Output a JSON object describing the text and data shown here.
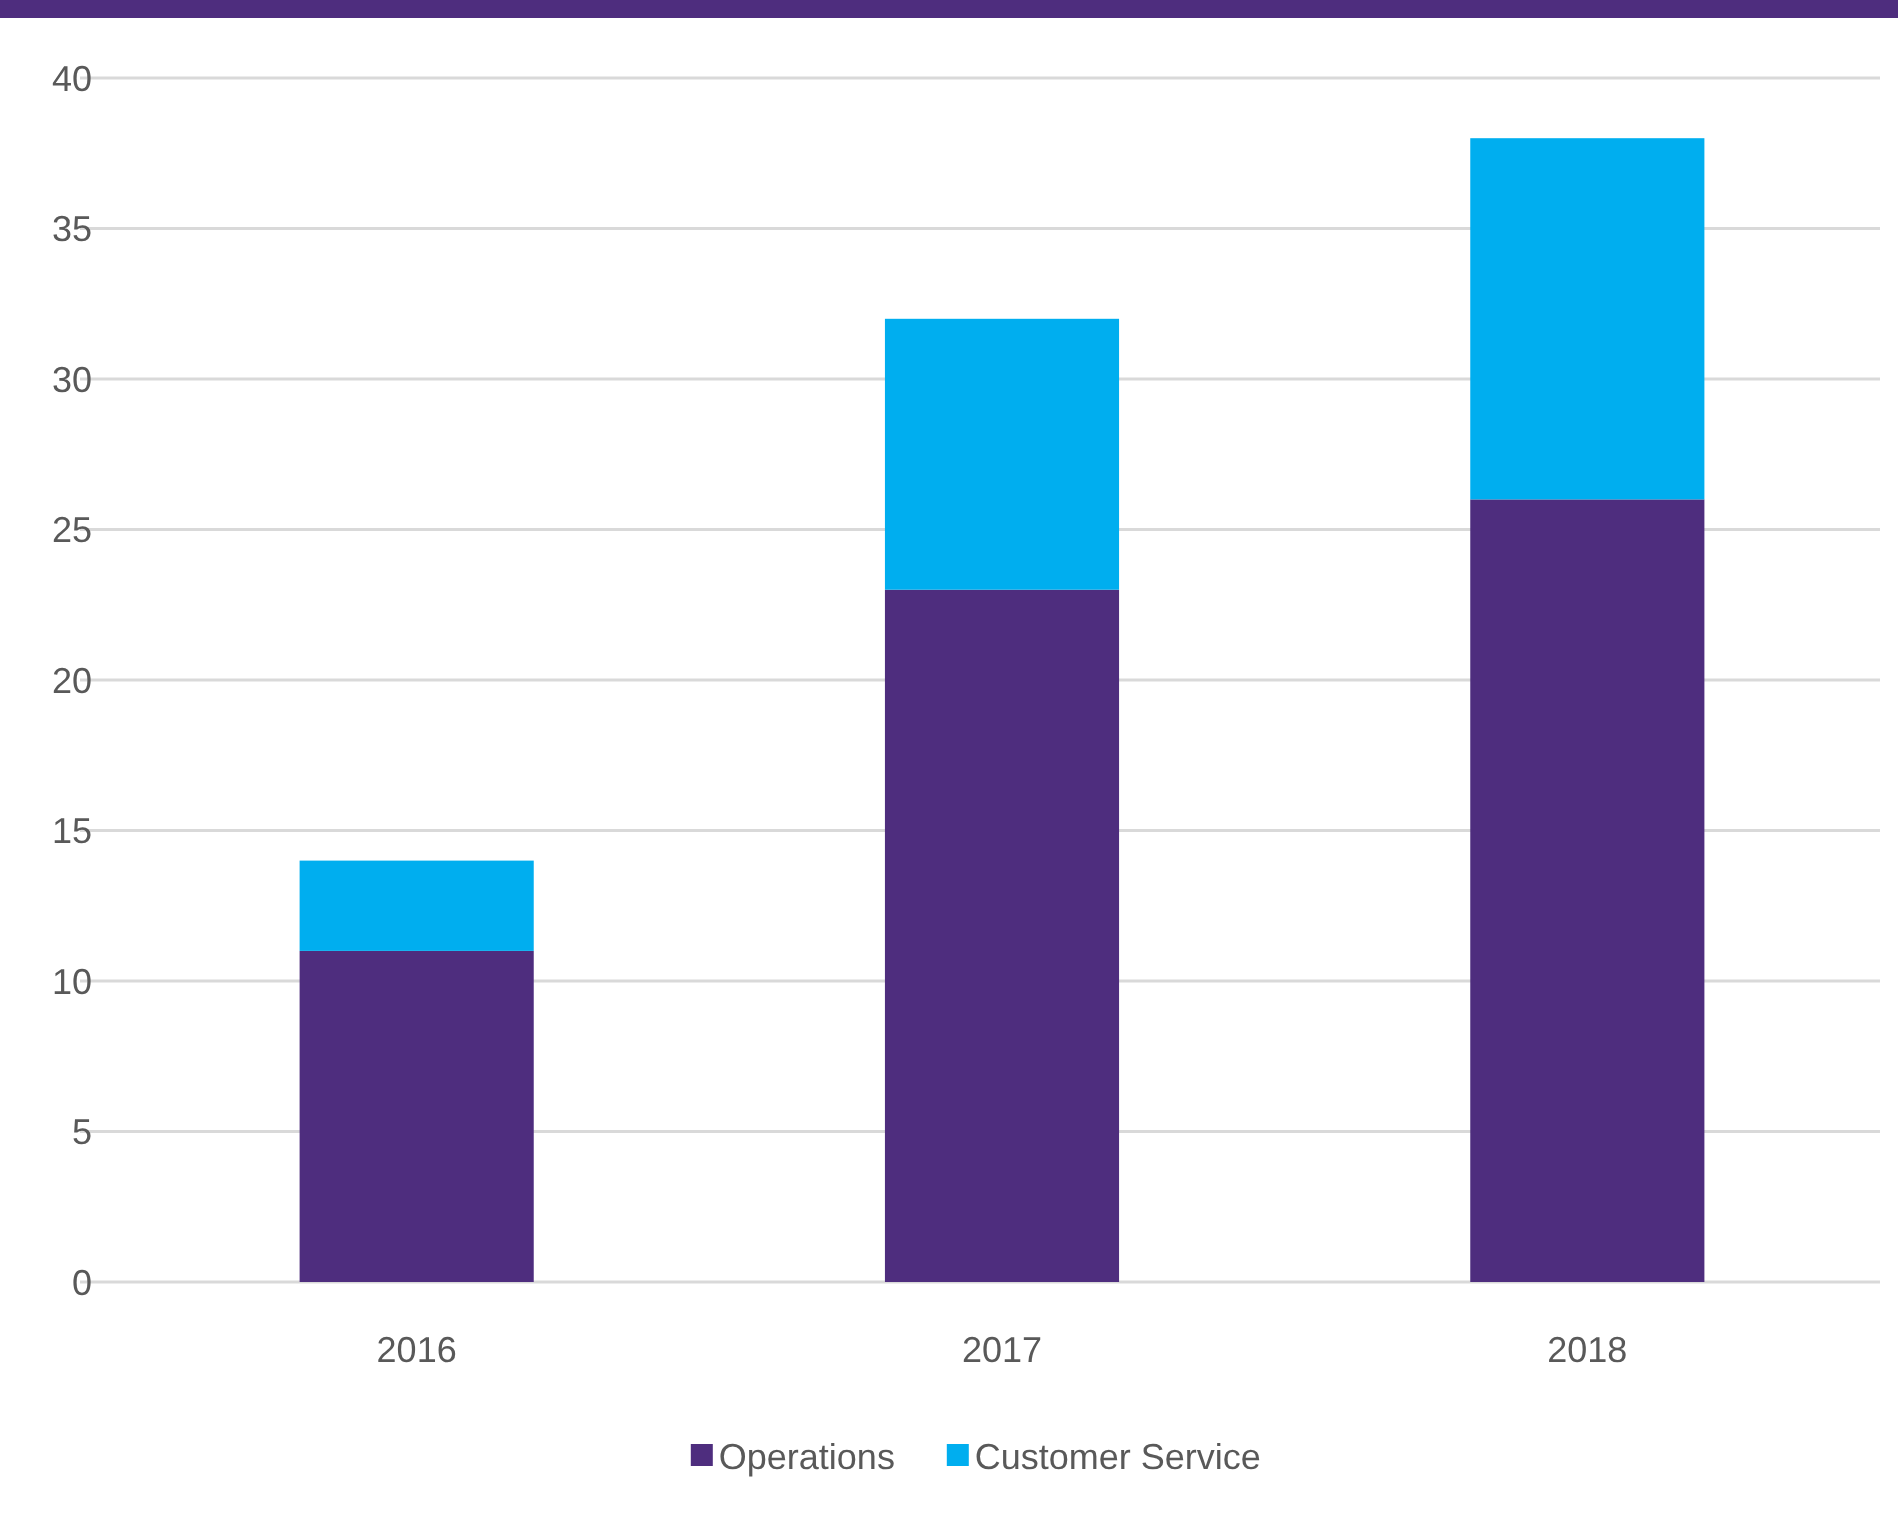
{
  "chart_data": {
    "type": "bar",
    "stacked": true,
    "categories": [
      "2016",
      "2017",
      "2018"
    ],
    "series": [
      {
        "name": "Operations",
        "color": "#4e2d7e",
        "values": [
          11,
          23,
          26
        ]
      },
      {
        "name": "Customer Service",
        "color": "#00aeef",
        "values": [
          3,
          9,
          12
        ]
      }
    ],
    "ylim": [
      0,
      40
    ],
    "yticks": [
      0,
      5,
      10,
      15,
      20,
      25,
      30,
      35,
      40
    ],
    "grid": "y",
    "legend": "bottom"
  }
}
